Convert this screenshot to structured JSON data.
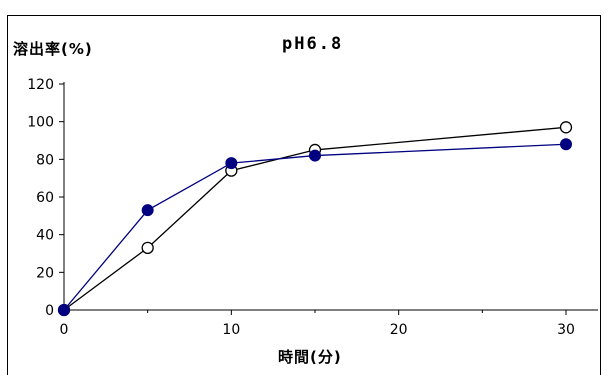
{
  "chart_data": {
    "type": "line",
    "title": "pH6.8",
    "ylabel": "溶出率(%)",
    "xlabel": "時間(分)",
    "x": [
      0,
      5,
      10,
      15,
      30
    ],
    "xlim": [
      0,
      30
    ],
    "ylim": [
      0,
      120
    ],
    "xticks": [
      "0",
      "10",
      "20",
      "30"
    ],
    "yticks": [
      "0",
      "20",
      "40",
      "60",
      "80",
      "100",
      "120"
    ],
    "grid": false,
    "series": [
      {
        "marker": "open-circle",
        "color": "#000000",
        "values": [
          0,
          33,
          74,
          85,
          97
        ]
      },
      {
        "marker": "filled-circle",
        "color": "#000080",
        "values": [
          0,
          53,
          78,
          82,
          88
        ]
      }
    ]
  }
}
